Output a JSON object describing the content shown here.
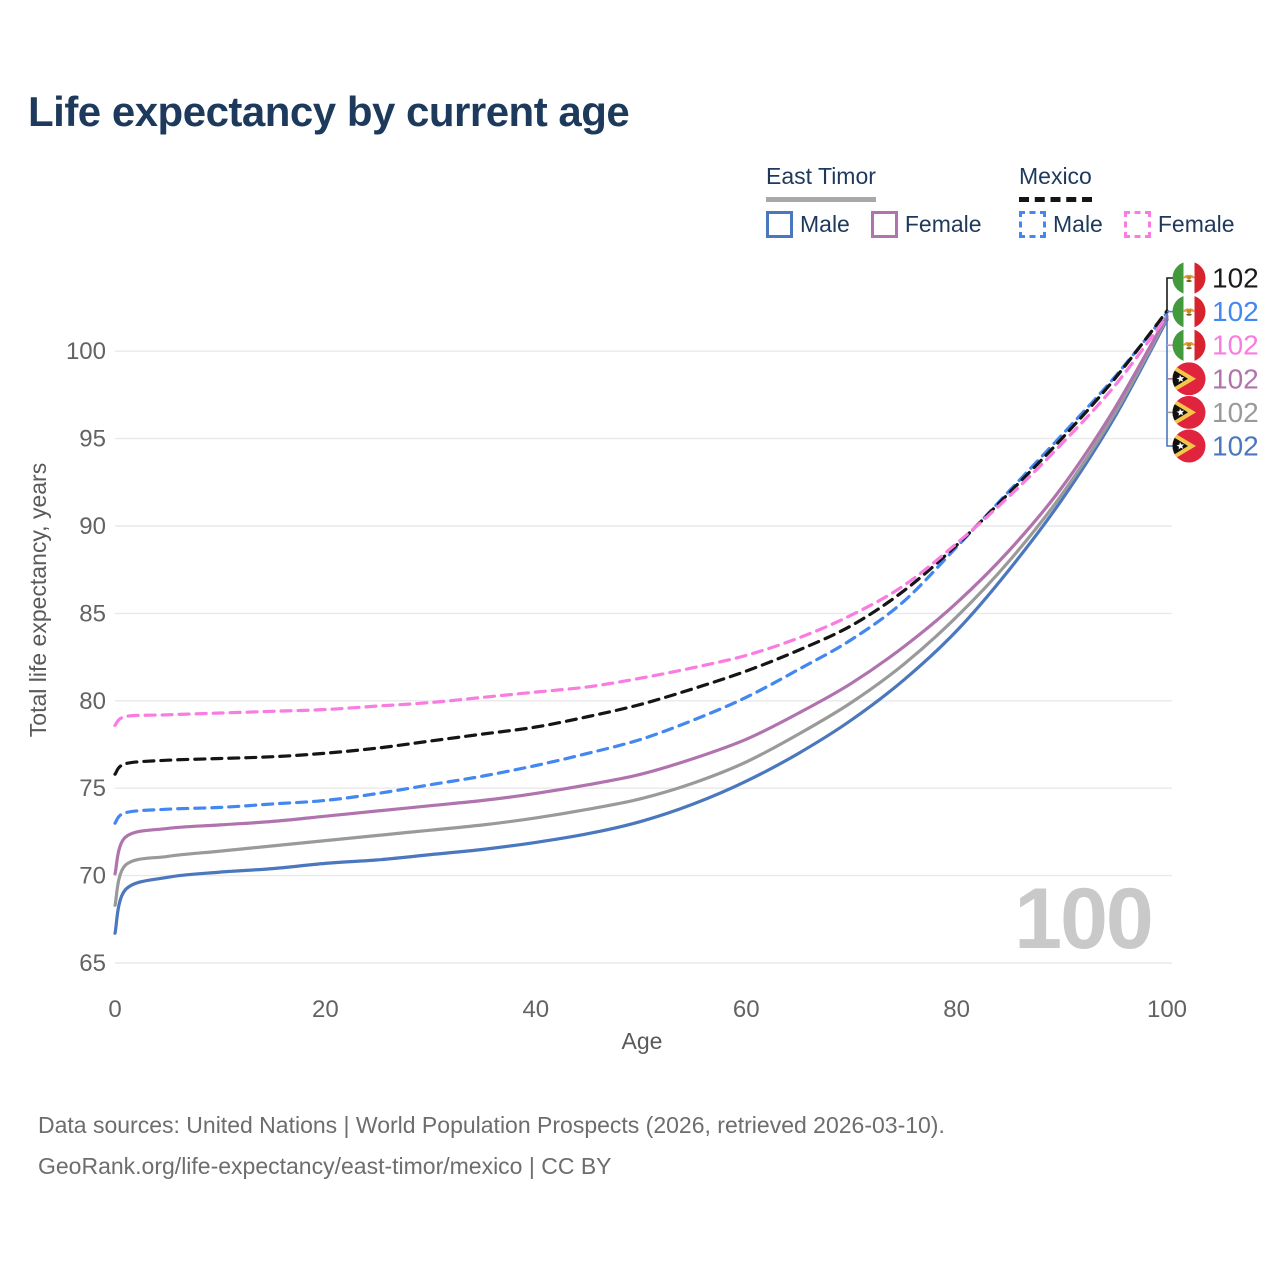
{
  "title": "Life expectancy by current age",
  "legend": {
    "groups": [
      {
        "label": "East Timor",
        "line_style": "solid",
        "underline_color": "#a8a8a8",
        "items": [
          {
            "label": "Male",
            "color": "#4a77bd"
          },
          {
            "label": "Female",
            "color": "#b173ae"
          }
        ]
      },
      {
        "label": "Mexico",
        "line_style": "dashed",
        "underline_color": "#151515",
        "items": [
          {
            "label": "Male",
            "color": "#4387f0"
          },
          {
            "label": "Female",
            "color": "#f97ce0"
          }
        ]
      }
    ]
  },
  "watermark": "100",
  "footer": {
    "line1": "Data sources: United Nations | World Population Prospects (2026, retrieved 2026-03-10).",
    "line2": "GeoRank.org/life-expectancy/east-timor/mexico | CC BY"
  },
  "chart_data": {
    "type": "line",
    "title": "Life expectancy by current age",
    "xlabel": "Age",
    "ylabel": "Total life expectancy, years",
    "xlim": [
      0,
      100
    ],
    "ylim": [
      65,
      103.5
    ],
    "xticks": [
      0,
      20,
      40,
      60,
      80,
      100
    ],
    "yticks": [
      65,
      70,
      75,
      80,
      85,
      90,
      95,
      100
    ],
    "grid": "horizontal",
    "legend_position": "top-right",
    "x": [
      0,
      1,
      5,
      10,
      15,
      20,
      25,
      30,
      35,
      40,
      45,
      50,
      55,
      60,
      65,
      70,
      75,
      80,
      85,
      90,
      95,
      100
    ],
    "series": [
      {
        "key": "east-timor-male",
        "country": "East Timor",
        "sex": "Male",
        "color": "#4a77bd",
        "dash": null,
        "values": [
          66.7,
          69.2,
          69.9,
          70.2,
          70.4,
          70.7,
          70.9,
          71.2,
          71.5,
          71.9,
          72.4,
          73.1,
          74.1,
          75.4,
          77.0,
          78.9,
          81.2,
          84.0,
          87.5,
          91.5,
          96.2,
          101.8
        ]
      },
      {
        "key": "east-timor-both",
        "country": "East Timor",
        "sex": "Both sexes",
        "color": "#9a9a9a",
        "dash": null,
        "values": [
          68.3,
          70.6,
          71.1,
          71.4,
          71.7,
          72.0,
          72.3,
          72.6,
          72.9,
          73.3,
          73.8,
          74.4,
          75.3,
          76.5,
          78.1,
          79.9,
          82.1,
          84.8,
          88.0,
          91.8,
          96.4,
          101.9
        ]
      },
      {
        "key": "east-timor-female",
        "country": "East Timor",
        "sex": "Female",
        "color": "#b173ae",
        "dash": null,
        "values": [
          70.1,
          72.2,
          72.7,
          72.9,
          73.1,
          73.4,
          73.7,
          74.0,
          74.3,
          74.7,
          75.2,
          75.8,
          76.7,
          77.8,
          79.3,
          81.0,
          83.1,
          85.6,
          88.6,
          92.2,
          96.7,
          102.0
        ]
      },
      {
        "key": "mexico-male",
        "country": "Mexico",
        "sex": "Male",
        "color": "#4387f0",
        "dash": "10 7",
        "values": [
          73.0,
          73.6,
          73.8,
          73.9,
          74.1,
          74.3,
          74.7,
          75.2,
          75.7,
          76.3,
          77.0,
          77.8,
          78.9,
          80.2,
          81.8,
          83.5,
          85.7,
          88.8,
          92.0,
          95.2,
          98.5,
          102.2
        ]
      },
      {
        "key": "mexico-both",
        "country": "Mexico",
        "sex": "Both sexes",
        "color": "#151515",
        "dash": "10 7",
        "values": [
          75.8,
          76.4,
          76.6,
          76.7,
          76.8,
          77.0,
          77.3,
          77.7,
          78.1,
          78.5,
          79.1,
          79.8,
          80.7,
          81.7,
          82.9,
          84.3,
          86.3,
          88.9,
          91.9,
          95.0,
          98.4,
          102.3
        ]
      },
      {
        "key": "mexico-female",
        "country": "Mexico",
        "sex": "Female",
        "color": "#f97ce0",
        "dash": "10 7",
        "values": [
          78.6,
          79.1,
          79.2,
          79.3,
          79.4,
          79.5,
          79.7,
          79.9,
          80.2,
          80.5,
          80.8,
          81.3,
          81.9,
          82.6,
          83.6,
          84.9,
          86.6,
          89.0,
          91.7,
          94.7,
          98.0,
          102.0
        ]
      }
    ],
    "end_labels": [
      {
        "series": "mexico-both",
        "value": "102",
        "color": "#1a1a1a",
        "flag": "mexico-flag-icon"
      },
      {
        "series": "mexico-male",
        "value": "102",
        "color": "#4387f0",
        "flag": "mexico-flag-icon"
      },
      {
        "series": "mexico-female",
        "value": "102",
        "color": "#f97ce0",
        "flag": "mexico-flag-icon"
      },
      {
        "series": "east-timor-female",
        "value": "102",
        "color": "#b173ae",
        "flag": "east-timor-flag-icon"
      },
      {
        "series": "east-timor-both",
        "value": "102",
        "color": "#9a9a9a",
        "flag": "east-timor-flag-icon"
      },
      {
        "series": "east-timor-male",
        "value": "102",
        "color": "#4a77bd",
        "flag": "east-timor-flag-icon"
      }
    ],
    "axis_color": "#636363",
    "grid_color": "#e9e9e9",
    "watermark_color": "#c9c9c9"
  }
}
